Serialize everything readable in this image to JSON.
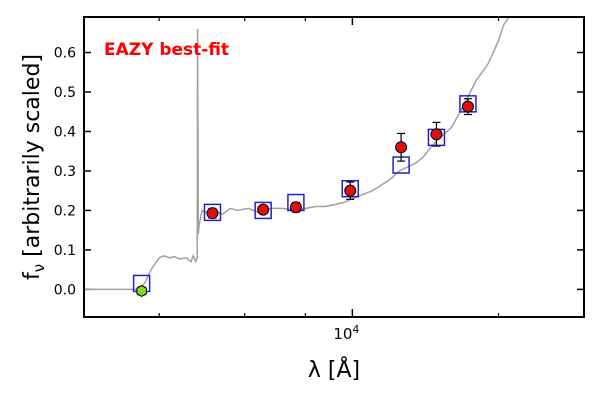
{
  "chart_data": {
    "type": "scatter",
    "title": "",
    "annotation": "EAZY best-fit",
    "xlabel": "λ [Å]",
    "ylabel": "f_ν [arbitrarily scaled]",
    "x_scale": "log",
    "xlim": [
      2800,
      30000
    ],
    "ylim": [
      -0.07,
      0.69
    ],
    "x_tick_labels": [
      {
        "value": 10000,
        "label": "10^4"
      }
    ],
    "x_minor_ticks": [
      4000,
      6000,
      8000,
      20000
    ],
    "y_ticks": [
      0.0,
      0.1,
      0.2,
      0.3,
      0.4,
      0.5,
      0.6
    ],
    "y_tick_labels": [
      "0.0",
      "0.1",
      "0.2",
      "0.3",
      "0.4",
      "0.5",
      "0.6"
    ],
    "grid": false,
    "colors": {
      "template": "#a0a0a0",
      "model": "#2020d0",
      "observed": "#e01010",
      "nondetection": "#7ddc1f",
      "annotation": "#ff0000",
      "axis": "#000000"
    },
    "series": [
      {
        "kind": "template",
        "points": [
          {
            "x": 2800,
            "y": 0.0
          },
          {
            "x": 3650,
            "y": 0.0
          },
          {
            "x": 3750,
            "y": 0.02
          },
          {
            "x": 3850,
            "y": 0.05
          },
          {
            "x": 3950,
            "y": 0.07
          },
          {
            "x": 4000,
            "y": 0.08
          },
          {
            "x": 4100,
            "y": 0.085
          },
          {
            "x": 4200,
            "y": 0.08
          },
          {
            "x": 4300,
            "y": 0.083
          },
          {
            "x": 4400,
            "y": 0.077
          },
          {
            "x": 4550,
            "y": 0.08
          },
          {
            "x": 4650,
            "y": 0.07
          },
          {
            "x": 4700,
            "y": 0.085
          },
          {
            "x": 4760,
            "y": 0.07
          },
          {
            "x": 4790,
            "y": 0.08
          },
          {
            "x": 4800,
            "y": 0.66
          },
          {
            "x": 4815,
            "y": 0.14
          },
          {
            "x": 4830,
            "y": 0.16
          },
          {
            "x": 4900,
            "y": 0.2
          },
          {
            "x": 5000,
            "y": 0.195
          },
          {
            "x": 5200,
            "y": 0.2
          },
          {
            "x": 5400,
            "y": 0.19
          },
          {
            "x": 5600,
            "y": 0.205
          },
          {
            "x": 5800,
            "y": 0.2
          },
          {
            "x": 6100,
            "y": 0.205
          },
          {
            "x": 6400,
            "y": 0.195
          },
          {
            "x": 6800,
            "y": 0.205
          },
          {
            "x": 7200,
            "y": 0.205
          },
          {
            "x": 7600,
            "y": 0.2
          },
          {
            "x": 8000,
            "y": 0.205
          },
          {
            "x": 8400,
            "y": 0.21
          },
          {
            "x": 8800,
            "y": 0.21
          },
          {
            "x": 9200,
            "y": 0.215
          },
          {
            "x": 9600,
            "y": 0.22
          },
          {
            "x": 10000,
            "y": 0.23
          },
          {
            "x": 10500,
            "y": 0.24
          },
          {
            "x": 11000,
            "y": 0.25
          },
          {
            "x": 11500,
            "y": 0.265
          },
          {
            "x": 12000,
            "y": 0.28
          },
          {
            "x": 12500,
            "y": 0.3
          },
          {
            "x": 13000,
            "y": 0.31
          },
          {
            "x": 13500,
            "y": 0.32
          },
          {
            "x": 14000,
            "y": 0.335
          },
          {
            "x": 14500,
            "y": 0.36
          },
          {
            "x": 15000,
            "y": 0.38
          },
          {
            "x": 15500,
            "y": 0.395
          },
          {
            "x": 16000,
            "y": 0.41
          },
          {
            "x": 16500,
            "y": 0.44
          },
          {
            "x": 17000,
            "y": 0.47
          },
          {
            "x": 17500,
            "y": 0.5
          },
          {
            "x": 18000,
            "y": 0.53
          },
          {
            "x": 18500,
            "y": 0.55
          },
          {
            "x": 19000,
            "y": 0.57
          },
          {
            "x": 19500,
            "y": 0.6
          },
          {
            "x": 20000,
            "y": 0.63
          },
          {
            "x": 20500,
            "y": 0.67
          },
          {
            "x": 21000,
            "y": 0.69
          }
        ]
      },
      {
        "kind": "model",
        "marker": "open-square",
        "points": [
          {
            "x": 3680,
            "y": 0.015
          },
          {
            "x": 5150,
            "y": 0.195
          },
          {
            "x": 6550,
            "y": 0.2
          },
          {
            "x": 7650,
            "y": 0.22
          },
          {
            "x": 9900,
            "y": 0.255
          },
          {
            "x": 12600,
            "y": 0.315
          },
          {
            "x": 14900,
            "y": 0.385
          },
          {
            "x": 17300,
            "y": 0.47
          }
        ]
      },
      {
        "kind": "observed",
        "marker": "filled-circle",
        "points": [
          {
            "x": 5150,
            "y": 0.193,
            "err": 0.012
          },
          {
            "x": 6550,
            "y": 0.202,
            "err": 0.01
          },
          {
            "x": 7650,
            "y": 0.208,
            "err": 0.012
          },
          {
            "x": 9900,
            "y": 0.25,
            "err": 0.022
          },
          {
            "x": 12600,
            "y": 0.36,
            "err": 0.035
          },
          {
            "x": 14900,
            "y": 0.393,
            "err": 0.03
          },
          {
            "x": 17300,
            "y": 0.463,
            "err": 0.02
          }
        ]
      },
      {
        "kind": "nondetection",
        "marker": "filled-hexagon",
        "points": [
          {
            "x": 3680,
            "y": -0.004,
            "err": 0.01
          }
        ]
      }
    ]
  }
}
